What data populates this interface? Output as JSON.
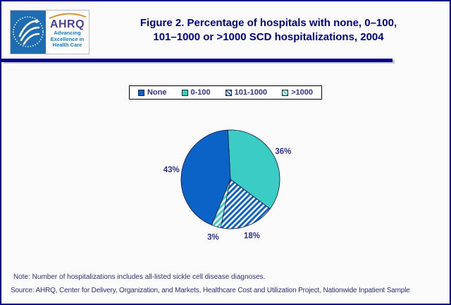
{
  "header": {
    "title_line1": "Figure 2. Percentage of hospitals with none, 0–100,",
    "title_line2": "101–1000 or >1000 SCD hospitalizations, 2004",
    "logo": {
      "ahrq_text": "AHRQ",
      "tagline_line1": "Advancing",
      "tagline_line2": "Excellence in",
      "tagline_line3": "Health Care"
    }
  },
  "chart_data": {
    "type": "pie",
    "title": "Figure 2. Percentage of hospitals with none, 0–100, 101–1000 or >1000 SCD hospitalizations, 2004",
    "slices": [
      {
        "label": "None",
        "value": 43,
        "display": "43%",
        "color": "#0B62C7",
        "pattern": "solid"
      },
      {
        "label": "0-100",
        "value": 36,
        "display": "36%",
        "color": "#3ACCC5",
        "pattern": "solid"
      },
      {
        "label": "101-1000",
        "value": 18,
        "display": "18%",
        "color": "#0B62C7",
        "pattern": "stripes"
      },
      {
        "label": ">1000",
        "value": 3,
        "display": "3%",
        "color": "#3ACCC5",
        "pattern": "stripes"
      }
    ],
    "draw_order": [
      1,
      2,
      3,
      0
    ],
    "clockwise": true,
    "start_angle_deg": -3,
    "legend_position": "top-center",
    "outline_color": "#14143C",
    "label_color": "#2F3191"
  },
  "footer": {
    "note": "Note: Number of hospitalizations includes all-listed sickle cell disease diagnoses.",
    "source": "Source: AHRQ, Center for Delivery, Organization, and Markets, Healthcare Cost and Utilization Project, Nationwide Inpatient Sample"
  },
  "colors": {
    "page_border": "#00008B",
    "title_text": "#00008B",
    "background": "#FBFBFB",
    "hhs_panel": "#1E6CB2",
    "ahrq_word": "#4A4099",
    "ahrq_arc": "#D89030",
    "tagline": "#1778BE",
    "footer_text": "#2E2E75"
  }
}
